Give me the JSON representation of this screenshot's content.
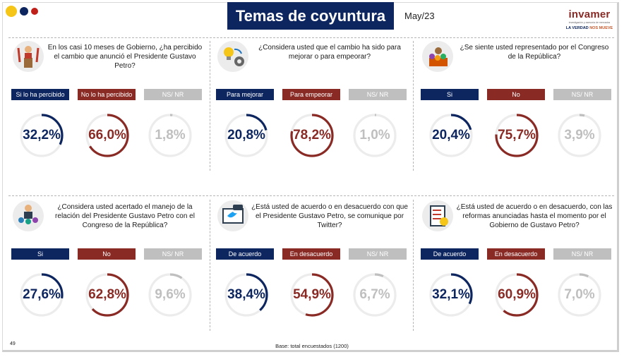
{
  "header": {
    "title": "Temas de coyuntura",
    "date": "May/23",
    "logo_brand": "invamer",
    "logo_sub": "investigación y asesoría de mercados",
    "logo_tag_a": "LA VERDAD ",
    "logo_tag_b": "NOS MUEVE"
  },
  "colors": {
    "navy": "#0d2660",
    "red": "#8a2a25",
    "gray": "#bfbfbf",
    "track": "#ececec",
    "dot_yellow": "#f5c518",
    "dot_navy": "#0d2660",
    "dot_red": "#c0201a"
  },
  "chart_data": [
    {
      "type": "gauge",
      "title": "En los casi 10 meses de Gobierno, ¿ha percibido el cambio que anunció el Presidente Gustavo Petro?",
      "icon": "podium-speaker-icon",
      "categories": [
        "Si lo ha percibido",
        "No lo ha percibido",
        "NS/ NR"
      ],
      "values": [
        32.2,
        66.0,
        1.8
      ],
      "value_labels": [
        "32,2%",
        "66,0%",
        "1,8%"
      ]
    },
    {
      "type": "gauge",
      "title": "¿Considera usted que el cambio ha sido para mejorar o para empeorar?",
      "icon": "lightbulb-gears-icon",
      "categories": [
        "Para mejorar",
        "Para empeorar",
        "NS/ NR"
      ],
      "values": [
        20.8,
        78.2,
        1.0
      ],
      "value_labels": [
        "20,8%",
        "78,2%",
        "1,0%"
      ]
    },
    {
      "type": "gauge",
      "title": "¿Se siente usted representado por el Congreso de la República?",
      "icon": "congress-people-icon",
      "categories": [
        "Si",
        "No",
        "NS/ NR"
      ],
      "values": [
        20.4,
        75.7,
        3.9
      ],
      "value_labels": [
        "20,4%",
        "75,7%",
        "3,9%"
      ]
    },
    {
      "type": "gauge",
      "title": "¿Considera usted acertado el manejo de la relación del Presidente Gustavo Petro con el Congreso de la República?",
      "icon": "leader-group-icon",
      "categories": [
        "Si",
        "No",
        "NS/ NR"
      ],
      "values": [
        27.6,
        62.8,
        9.6
      ],
      "value_labels": [
        "27,6%",
        "62,8%",
        "9,6%"
      ]
    },
    {
      "type": "gauge",
      "title": "¿Está usted de acuerdo o en desacuerdo con que el Presidente Gustavo Petro, se comunique por Twitter?",
      "icon": "twitter-screen-icon",
      "categories": [
        "De acuerdo",
        "En desacuerdo",
        "NS/ NR"
      ],
      "values": [
        38.4,
        54.9,
        6.7
      ],
      "value_labels": [
        "38,4%",
        "54,9%",
        "6,7%"
      ]
    },
    {
      "type": "gauge",
      "title": "¿Está usted de acuerdo o en desacuerdo, con las reformas anunciadas hasta el momento por el Gobierno de Gustavo Petro?",
      "icon": "checklist-badge-icon",
      "categories": [
        "De acuerdo",
        "En desacuerdo",
        "NS/ NR"
      ],
      "values": [
        32.1,
        60.9,
        7.0
      ],
      "value_labels": [
        "32,1%",
        "60,9%",
        "7,0%"
      ]
    }
  ],
  "footer": {
    "page_number": "49",
    "base": "Base: total encuestados (1200)"
  }
}
